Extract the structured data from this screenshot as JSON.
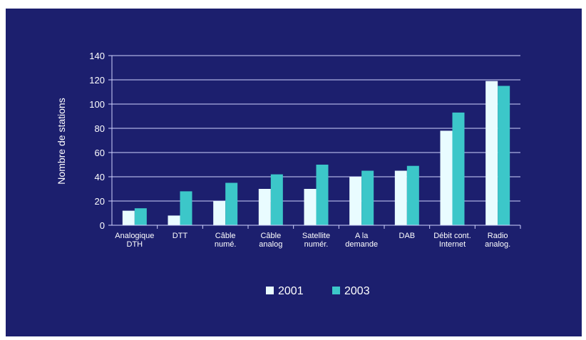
{
  "colors": {
    "background": "#1c1f6e",
    "axis": "#d0d3ff",
    "series_2001": "#e9fcff",
    "series_2003": "#3cc7c9"
  },
  "chart_data": {
    "type": "bar",
    "ylabel": "Nombre de stations",
    "xlabel": "",
    "ylim": [
      0,
      140
    ],
    "yticks": [
      0,
      20,
      40,
      60,
      80,
      100,
      120,
      140
    ],
    "grid": true,
    "legend": "bottom",
    "categories": [
      [
        "Analogique",
        "DTH"
      ],
      [
        "DTT"
      ],
      [
        "Câble",
        "numé."
      ],
      [
        "Câble",
        "analog"
      ],
      [
        "Satellite",
        "numér."
      ],
      [
        "A la",
        "demande"
      ],
      [
        "DAB"
      ],
      [
        "Débit cont.",
        "Internet"
      ],
      [
        "Radio",
        "analog."
      ]
    ],
    "series": [
      {
        "name": "2001",
        "values": [
          12,
          8,
          20,
          30,
          30,
          40,
          45,
          78,
          119
        ]
      },
      {
        "name": "2003",
        "values": [
          14,
          28,
          35,
          42,
          50,
          45,
          49,
          93,
          115
        ]
      }
    ]
  }
}
